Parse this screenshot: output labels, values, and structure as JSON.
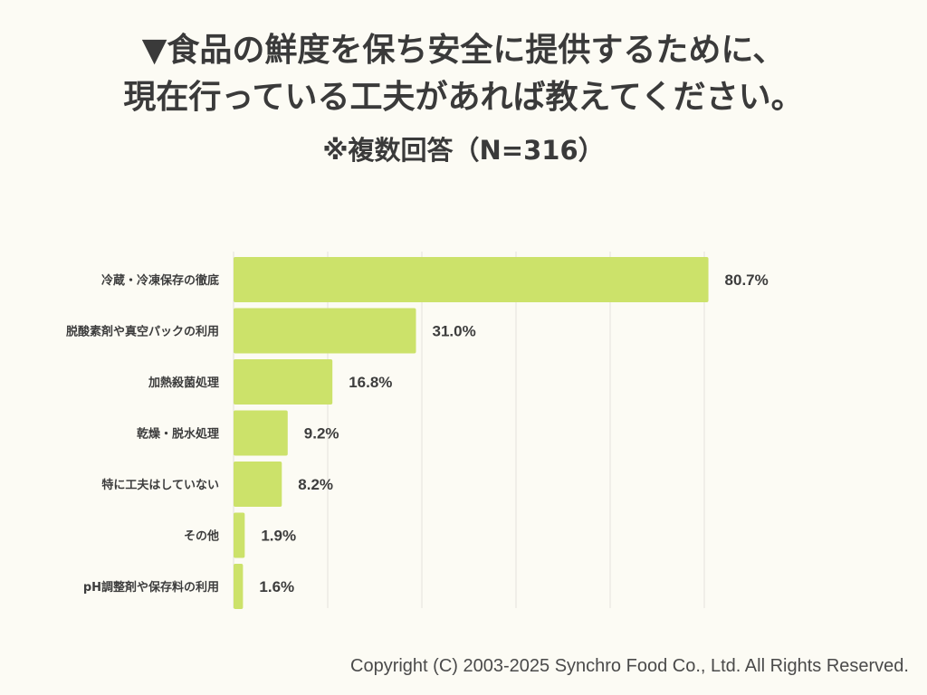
{
  "header": {
    "title_line1": "▼食品の鮮度を保ち安全に提供するために、",
    "title_line2": "現在行っている工夫があれば教えてください。",
    "subtitle": "※複数回答（N=316）"
  },
  "colors": {
    "background": "#fcfbf4",
    "bar": "#cce26a",
    "grid": "#e4e2db",
    "text": "#3d3d3d"
  },
  "chart_data": {
    "type": "bar",
    "orientation": "horizontal",
    "categories": [
      "冷蔵・冷凍保存の徹底",
      "脱酸素剤や真空パックの利用",
      "加熱殺菌処理",
      "乾燥・脱水処理",
      "特に工夫はしていない",
      "その他",
      "pH調整剤や保存料の利用"
    ],
    "values": [
      80.7,
      31.0,
      16.8,
      9.2,
      8.2,
      1.9,
      1.6
    ],
    "value_labels": [
      "80.7%",
      "31.0%",
      "16.8%",
      "9.2%",
      "8.2%",
      "1.9%",
      "1.6%"
    ],
    "xlim": [
      0,
      60
    ],
    "grid": true,
    "legend": "none"
  },
  "footer": {
    "copyright": "Copyright (C) 2003-2025  Synchro Food Co., Ltd. All Rights Reserved."
  }
}
